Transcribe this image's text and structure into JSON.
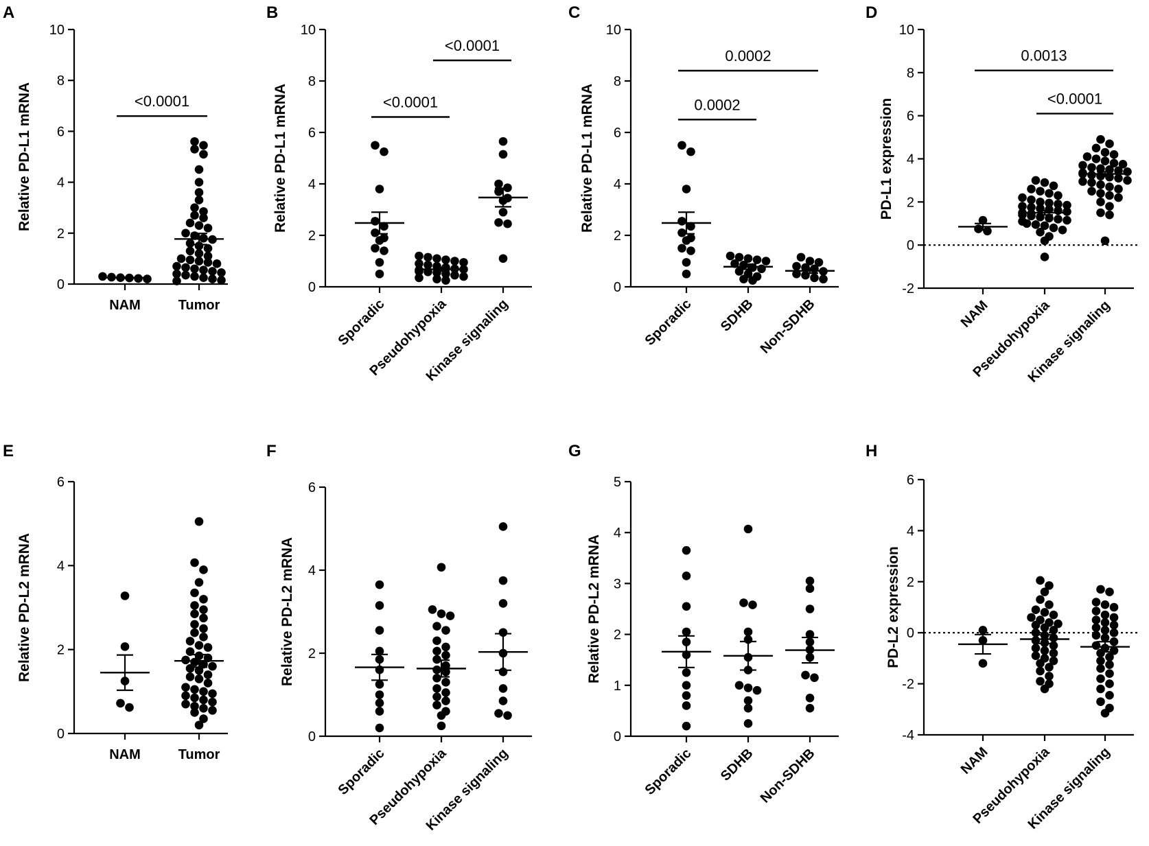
{
  "figure": {
    "panels": [
      "A",
      "B",
      "C",
      "D",
      "E",
      "F",
      "G",
      "H"
    ]
  },
  "chart_data": [
    {
      "id": "A",
      "type": "scatter",
      "panel_label": "A",
      "ylabel": "Relative PD-L1 mRNA",
      "ylim": [
        0,
        10
      ],
      "yticks": [
        "0",
        "2",
        "4",
        "6",
        "8",
        "10"
      ],
      "categories": [
        "NAM",
        "Tumor"
      ],
      "rotated_labels": false,
      "groups": [
        {
          "name": "NAM",
          "mean": 0.25,
          "sem": 0.02,
          "points": [
            0.22,
            0.25,
            0.3,
            0.27,
            0.2,
            0.24
          ]
        },
        {
          "name": "Tumor",
          "mean": 1.77,
          "sem": 0.22,
          "points": [
            5.6,
            5.45,
            5.3,
            5.1,
            4.5,
            4.0,
            3.6,
            3.3,
            3.0,
            2.85,
            2.7,
            2.6,
            2.4,
            2.3,
            2.2,
            2.0,
            1.9,
            1.8,
            1.75,
            1.6,
            1.5,
            1.4,
            1.3,
            1.2,
            1.1,
            1.0,
            0.95,
            0.9,
            0.85,
            0.8,
            0.7,
            0.65,
            0.6,
            0.55,
            0.5,
            0.45,
            0.4,
            0.35,
            0.3,
            0.25,
            0.2,
            0.15,
            0.12
          ]
        }
      ],
      "comparisons": [
        {
          "from": 0,
          "to": 1,
          "y": 6.6,
          "label": "<0.0001"
        }
      ]
    },
    {
      "id": "B",
      "type": "scatter",
      "panel_label": "B",
      "ylabel": "Relative PD-L1 mRNA",
      "ylim": [
        0,
        10
      ],
      "yticks": [
        "0",
        "2",
        "4",
        "6",
        "8",
        "10"
      ],
      "categories": [
        "Sporadic",
        "Pseudohypoxia",
        "Kinase signaling"
      ],
      "rotated_labels": true,
      "groups": [
        {
          "name": "Sporadic",
          "mean": 2.48,
          "sem": 0.42,
          "points": [
            5.5,
            5.25,
            3.8,
            2.55,
            2.35,
            2.1,
            1.9,
            1.8,
            1.5,
            1.4,
            0.95,
            0.5
          ]
        },
        {
          "name": "Pseudohypoxia",
          "mean": 0.68,
          "sem": 0.07,
          "points": [
            1.2,
            1.15,
            1.1,
            1.05,
            1.0,
            0.95,
            0.9,
            0.85,
            0.8,
            0.75,
            0.7,
            0.68,
            0.65,
            0.6,
            0.58,
            0.55,
            0.5,
            0.45,
            0.4,
            0.35,
            0.3,
            0.25
          ]
        },
        {
          "name": "Kinase signaling",
          "mean": 3.47,
          "sem": 0.36,
          "points": [
            5.65,
            5.15,
            4.0,
            3.85,
            3.7,
            3.45,
            3.35,
            2.9,
            2.5,
            2.45,
            1.1
          ]
        }
      ],
      "comparisons": [
        {
          "from": 0,
          "to": 1,
          "y": 6.6,
          "label": "<0.0001"
        },
        {
          "from": 1,
          "to": 2,
          "y": 8.8,
          "label": "<0.0001"
        }
      ]
    },
    {
      "id": "C",
      "type": "scatter",
      "panel_label": "C",
      "ylabel": "Relative PD-L1 mRNA",
      "ylim": [
        0,
        10
      ],
      "yticks": [
        "0",
        "2",
        "4",
        "6",
        "8",
        "10"
      ],
      "categories": [
        "Sporadic",
        "SDHB",
        "Non-SDHB"
      ],
      "rotated_labels": true,
      "groups": [
        {
          "name": "Sporadic",
          "mean": 2.48,
          "sem": 0.42,
          "points": [
            5.5,
            5.25,
            3.8,
            2.55,
            2.35,
            2.1,
            1.9,
            1.8,
            1.5,
            1.4,
            0.95,
            0.5
          ]
        },
        {
          "name": "SDHB",
          "mean": 0.78,
          "sem": 0.1,
          "points": [
            1.2,
            1.15,
            1.1,
            1.05,
            1.0,
            0.9,
            0.85,
            0.75,
            0.7,
            0.6,
            0.5,
            0.4,
            0.3,
            0.25
          ]
        },
        {
          "name": "Non-SDHB",
          "mean": 0.62,
          "sem": 0.09,
          "points": [
            1.15,
            1.0,
            0.95,
            0.8,
            0.75,
            0.7,
            0.6,
            0.5,
            0.45,
            0.35,
            0.3
          ]
        }
      ],
      "comparisons": [
        {
          "from": 0,
          "to": 1,
          "y": 6.5,
          "label": "0.0002"
        },
        {
          "from": 0,
          "to": 2,
          "y": 8.4,
          "label": "0.0002"
        }
      ]
    },
    {
      "id": "D",
      "type": "scatter",
      "panel_label": "D",
      "ylabel": "PD-L1 expression",
      "ylim": [
        -2,
        10
      ],
      "yticks": [
        "-2",
        "0",
        "2",
        "4",
        "6",
        "8",
        "10"
      ],
      "categories": [
        "NAM",
        "Pseudohypoxia",
        "Kinase signaling"
      ],
      "rotated_labels": true,
      "zero_line": true,
      "groups": [
        {
          "name": "NAM",
          "mean": 0.85,
          "sem": 0.15,
          "points": [
            1.15,
            0.75,
            0.65
          ]
        },
        {
          "name": "Pseudohypoxia",
          "mean": 1.5,
          "sem": 0.1,
          "points": [
            3.0,
            2.9,
            2.75,
            2.6,
            2.5,
            2.4,
            2.3,
            2.2,
            2.1,
            2.0,
            1.95,
            1.9,
            1.85,
            1.8,
            1.75,
            1.7,
            1.65,
            1.6,
            1.55,
            1.5,
            1.45,
            1.4,
            1.35,
            1.3,
            1.25,
            1.2,
            1.15,
            1.1,
            1.0,
            0.95,
            0.9,
            0.8,
            0.7,
            0.6,
            0.4,
            0.2,
            -0.55
          ]
        },
        {
          "name": "Kinase signaling",
          "mean": 3.3,
          "sem": 0.1,
          "points": [
            4.9,
            4.7,
            4.5,
            4.3,
            4.2,
            4.1,
            4.0,
            3.9,
            3.8,
            3.75,
            3.7,
            3.6,
            3.55,
            3.5,
            3.45,
            3.4,
            3.35,
            3.3,
            3.25,
            3.2,
            3.15,
            3.1,
            3.0,
            2.95,
            2.9,
            2.8,
            2.7,
            2.6,
            2.5,
            2.4,
            2.3,
            2.2,
            2.0,
            1.8,
            1.5,
            1.4,
            0.2
          ]
        }
      ],
      "comparisons": [
        {
          "from": 0,
          "to": 2,
          "y": 8.1,
          "label": "0.0013"
        },
        {
          "from": 1,
          "to": 2,
          "y": 6.1,
          "label": "<0.0001"
        }
      ]
    },
    {
      "id": "E",
      "type": "scatter",
      "panel_label": "E",
      "ylabel": "Relative PD-L2 mRNA",
      "ylim": [
        0,
        6
      ],
      "yticks": [
        "0",
        "2",
        "4",
        "6"
      ],
      "categories": [
        "NAM",
        "Tumor"
      ],
      "rotated_labels": false,
      "groups": [
        {
          "name": "NAM",
          "mean": 1.45,
          "sem": 0.42,
          "points": [
            3.28,
            2.07,
            1.25,
            0.72,
            0.62
          ]
        },
        {
          "name": "Tumor",
          "mean": 1.73,
          "sem": 0.15,
          "points": [
            5.05,
            4.07,
            3.9,
            3.6,
            3.35,
            3.2,
            3.05,
            2.95,
            2.85,
            2.75,
            2.6,
            2.5,
            2.4,
            2.3,
            2.2,
            2.1,
            2.05,
            1.95,
            1.85,
            1.8,
            1.75,
            1.7,
            1.65,
            1.6,
            1.55,
            1.5,
            1.4,
            1.35,
            1.3,
            1.2,
            1.1,
            1.05,
            1.0,
            0.95,
            0.9,
            0.85,
            0.8,
            0.75,
            0.7,
            0.65,
            0.6,
            0.55,
            0.5,
            0.35,
            0.2
          ]
        }
      ],
      "comparisons": []
    },
    {
      "id": "F",
      "type": "scatter",
      "panel_label": "F",
      "ylabel": "Relative PD-L2 mRNA",
      "ylim": [
        0,
        6
      ],
      "yticks": [
        "0",
        "2",
        "4",
        "6"
      ],
      "categories": [
        "Sporadic",
        "Pseudohypoxia",
        "Kinase signaling"
      ],
      "rotated_labels": true,
      "groups": [
        {
          "name": "Sporadic",
          "mean": 1.66,
          "sem": 0.31,
          "points": [
            3.65,
            3.15,
            2.55,
            2.05,
            1.85,
            1.6,
            1.25,
            1.0,
            0.8,
            0.6,
            0.2
          ]
        },
        {
          "name": "Pseudohypoxia",
          "mean": 1.63,
          "sem": 0.2,
          "points": [
            4.07,
            3.05,
            2.95,
            2.9,
            2.65,
            2.55,
            2.3,
            2.15,
            2.05,
            1.95,
            1.85,
            1.7,
            1.6,
            1.55,
            1.4,
            1.3,
            1.15,
            1.05,
            0.95,
            0.85,
            0.75,
            0.6,
            0.5,
            0.25
          ]
        },
        {
          "name": "Kinase signaling",
          "mean": 2.03,
          "sem": 0.44,
          "points": [
            5.05,
            3.75,
            3.2,
            2.5,
            2.0,
            1.55,
            1.15,
            0.85,
            0.55,
            0.5
          ]
        }
      ],
      "comparisons": []
    },
    {
      "id": "G",
      "type": "scatter",
      "panel_label": "G",
      "ylabel": "Relative PD-L2 mRNA",
      "ylim": [
        0,
        5
      ],
      "yticks": [
        "0",
        "1",
        "2",
        "3",
        "4",
        "5"
      ],
      "categories": [
        "Sporadic",
        "SDHB",
        "Non-SDHB"
      ],
      "rotated_labels": true,
      "groups": [
        {
          "name": "Sporadic",
          "mean": 1.66,
          "sem": 0.31,
          "points": [
            3.65,
            3.15,
            2.55,
            2.05,
            1.85,
            1.6,
            1.25,
            1.0,
            0.8,
            0.6,
            0.2
          ]
        },
        {
          "name": "SDHB",
          "mean": 1.58,
          "sem": 0.28,
          "points": [
            4.07,
            2.62,
            2.58,
            2.05,
            1.9,
            1.55,
            1.3,
            1.0,
            0.95,
            0.9,
            0.7,
            0.55,
            0.25
          ]
        },
        {
          "name": "Non-SDHB",
          "mean": 1.69,
          "sem": 0.25,
          "points": [
            3.05,
            2.9,
            2.5,
            2.0,
            1.85,
            1.7,
            1.55,
            1.2,
            1.15,
            0.75,
            0.55
          ]
        }
      ],
      "comparisons": []
    },
    {
      "id": "H",
      "type": "scatter",
      "panel_label": "H",
      "ylabel": "PD-L2 expression",
      "ylim": [
        -4,
        6
      ],
      "yticks": [
        "-4",
        "-2",
        "0",
        "2",
        "4",
        "6"
      ],
      "categories": [
        "NAM",
        "Pseudohypoxia",
        "Kinase signaling"
      ],
      "rotated_labels": true,
      "zero_line": true,
      "groups": [
        {
          "name": "NAM",
          "mean": -0.45,
          "sem": 0.38,
          "points": [
            0.1,
            -0.3,
            -1.2
          ]
        },
        {
          "name": "Pseudohypoxia",
          "mean": -0.25,
          "sem": 0.17,
          "points": [
            2.05,
            1.85,
            1.6,
            1.3,
            1.1,
            0.9,
            0.8,
            0.7,
            0.6,
            0.5,
            0.4,
            0.35,
            0.3,
            0.2,
            0.1,
            0.0,
            -0.1,
            -0.2,
            -0.3,
            -0.4,
            -0.5,
            -0.6,
            -0.7,
            -0.8,
            -0.9,
            -1.0,
            -1.1,
            -1.2,
            -1.35,
            -1.5,
            -1.7,
            -1.9,
            -2.0,
            -2.2
          ]
        },
        {
          "name": "Kinase signaling",
          "mean": -0.55,
          "sem": 0.2,
          "points": [
            1.7,
            1.6,
            1.2,
            1.1,
            1.0,
            0.85,
            0.7,
            0.6,
            0.5,
            0.4,
            0.3,
            0.2,
            0.1,
            0.0,
            -0.1,
            -0.2,
            -0.35,
            -0.5,
            -0.6,
            -0.7,
            -0.8,
            -0.95,
            -1.1,
            -1.25,
            -1.4,
            -1.6,
            -1.8,
            -2.0,
            -2.2,
            -2.45,
            -2.7,
            -2.95,
            -3.15
          ]
        }
      ],
      "comparisons": []
    }
  ]
}
